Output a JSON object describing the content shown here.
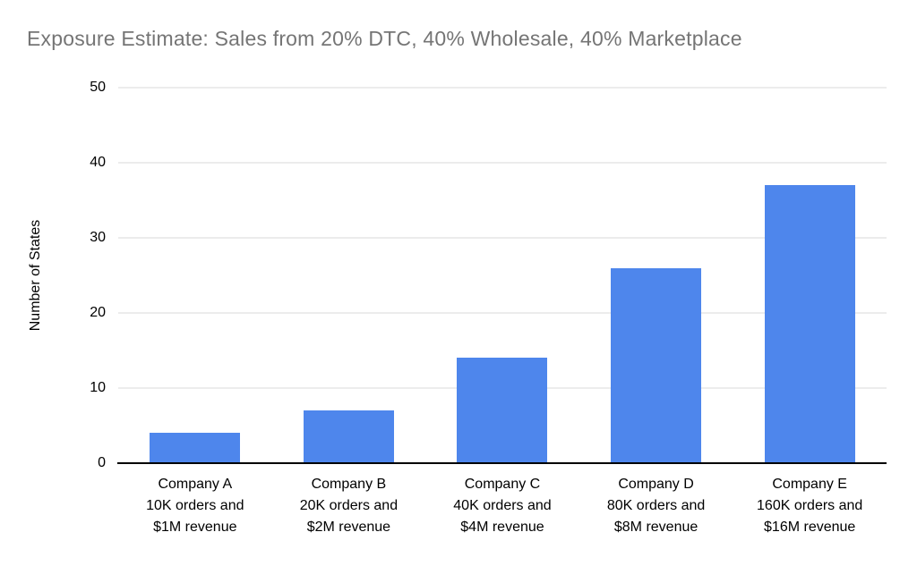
{
  "chart_data": {
    "type": "bar",
    "title": "Exposure Estimate: Sales from 20% DTC, 40% Wholesale, 40% Marketplace",
    "xlabel": "",
    "ylabel": "Number of States",
    "categories": [
      "Company A",
      "Company B",
      "Company C",
      "Company D",
      "Company E"
    ],
    "category_labels": [
      [
        "Company A",
        "10K orders and",
        "$1M revenue"
      ],
      [
        "Company B",
        "20K orders and",
        "$2M revenue"
      ],
      [
        "Company C",
        "40K orders and",
        "$4M revenue"
      ],
      [
        "Company D",
        "80K orders and",
        "$8M revenue"
      ],
      [
        "Company E",
        "160K orders and",
        "$16M revenue"
      ]
    ],
    "values": [
      4,
      7,
      14,
      26,
      37
    ],
    "ylim": [
      0,
      50
    ],
    "yticks": [
      0,
      10,
      20,
      30,
      40,
      50
    ],
    "grid": true,
    "legend": "none",
    "colors": {
      "bar": "#4e86ec",
      "gridline": "#d9d9d9",
      "axis": "#000000",
      "title": "#757575"
    }
  }
}
